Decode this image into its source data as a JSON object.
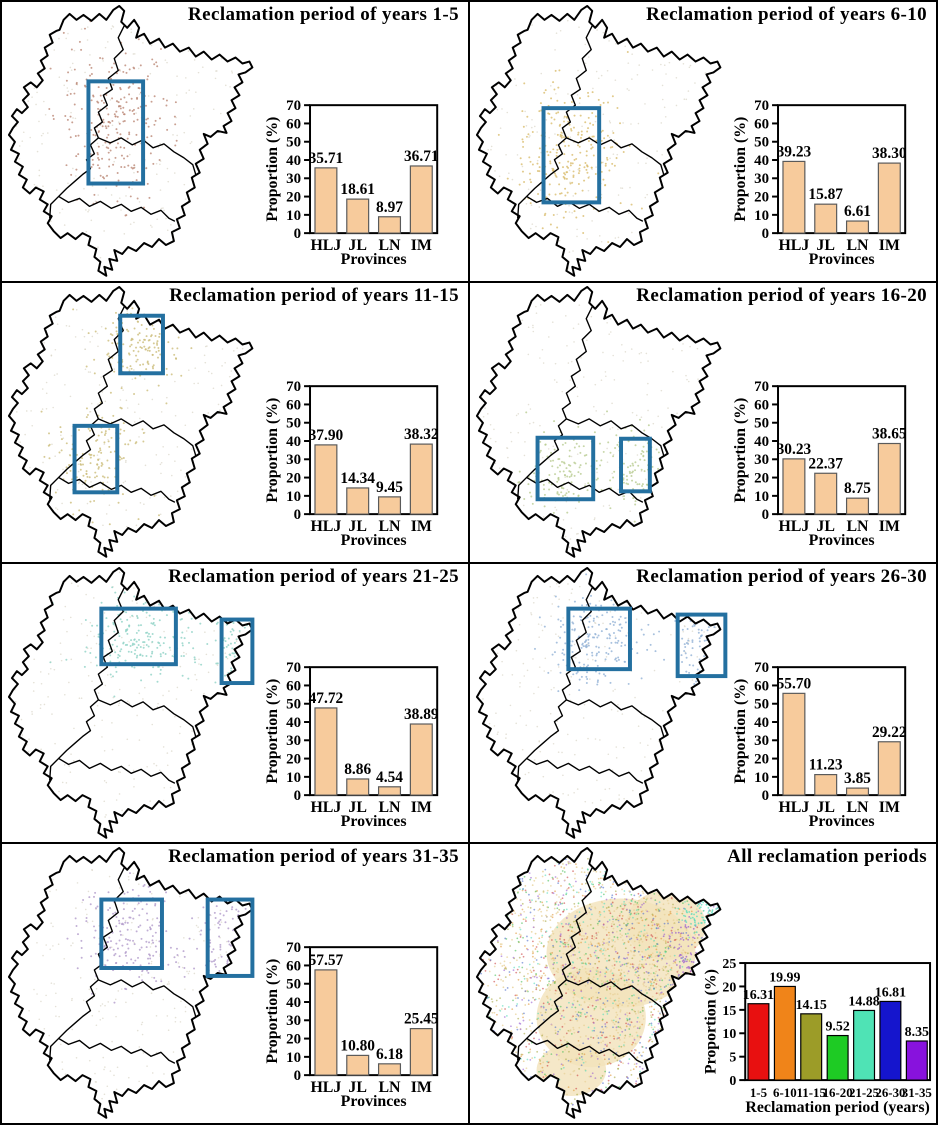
{
  "figure": {
    "description": "Eight-panel figure: maps of Northeast China provinces with highlighted regions and bar charts of cropland reclamation proportion",
    "colors": {
      "highlight_rect": "#2470a0",
      "small_bar_fill": "#f7cb9c",
      "small_bar_stroke": "#5a5a5a",
      "base_dot": "#d9d4c6",
      "tan_patch": "#f3e2ba",
      "map_outline": "#000000"
    }
  },
  "chart_data": [
    {
      "type": "bar",
      "title": "Reclamation period of years 1-5",
      "categories": [
        "HLJ",
        "JL",
        "LN",
        "IM"
      ],
      "values": [
        35.71,
        18.61,
        8.97,
        36.71
      ],
      "value_labels": [
        "35.71",
        "18.61",
        "8.97",
        "36.71"
      ],
      "xlabel": "Provinces",
      "ylabel": "Proportion (%)",
      "ylim": [
        0,
        70
      ],
      "yticks": [
        0,
        10,
        20,
        30,
        40,
        50,
        60,
        70
      ],
      "bar_color": "#f7cb9c",
      "grid": false,
      "legend": "none"
    },
    {
      "type": "bar",
      "title": "Reclamation period of years 6-10",
      "categories": [
        "HLJ",
        "JL",
        "LN",
        "IM"
      ],
      "values": [
        39.23,
        15.87,
        6.61,
        38.3
      ],
      "value_labels": [
        "39.23",
        "15.87",
        "6.61",
        "38.30"
      ],
      "xlabel": "Provinces",
      "ylabel": "Proportion (%)",
      "ylim": [
        0,
        70
      ],
      "yticks": [
        0,
        10,
        20,
        30,
        40,
        50,
        60,
        70
      ],
      "bar_color": "#f7cb9c",
      "grid": false,
      "legend": "none"
    },
    {
      "type": "bar",
      "title": "Reclamation period of years 11-15",
      "categories": [
        "HLJ",
        "JL",
        "LN",
        "IM"
      ],
      "values": [
        37.9,
        14.34,
        9.45,
        38.32
      ],
      "value_labels": [
        "37.90",
        "14.34",
        "9.45",
        "38.32"
      ],
      "xlabel": "Provinces",
      "ylabel": "Proportion (%)",
      "ylim": [
        0,
        70
      ],
      "yticks": [
        0,
        10,
        20,
        30,
        40,
        50,
        60,
        70
      ],
      "bar_color": "#f7cb9c",
      "grid": false,
      "legend": "none"
    },
    {
      "type": "bar",
      "title": "Reclamation period of years 16-20",
      "categories": [
        "HLJ",
        "JL",
        "LN",
        "IM"
      ],
      "values": [
        30.23,
        22.37,
        8.75,
        38.65
      ],
      "value_labels": [
        "30.23",
        "22.37",
        "8.75",
        "38.65"
      ],
      "xlabel": "Provinces",
      "ylabel": "Proportion (%)",
      "ylim": [
        0,
        70
      ],
      "yticks": [
        0,
        10,
        20,
        30,
        40,
        50,
        60,
        70
      ],
      "bar_color": "#f7cb9c",
      "grid": false,
      "legend": "none"
    },
    {
      "type": "bar",
      "title": "Reclamation period of years 21-25",
      "categories": [
        "HLJ",
        "JL",
        "LN",
        "IM"
      ],
      "values": [
        47.72,
        8.86,
        4.54,
        38.89
      ],
      "value_labels": [
        "47.72",
        "8.86",
        "4.54",
        "38.89"
      ],
      "xlabel": "Provinces",
      "ylabel": "Proportion (%)",
      "ylim": [
        0,
        70
      ],
      "yticks": [
        0,
        10,
        20,
        30,
        40,
        50,
        60,
        70
      ],
      "bar_color": "#f7cb9c",
      "grid": false,
      "legend": "none"
    },
    {
      "type": "bar",
      "title": "Reclamation period of years 26-30",
      "categories": [
        "HLJ",
        "JL",
        "LN",
        "IM"
      ],
      "values": [
        55.7,
        11.23,
        3.85,
        29.22
      ],
      "value_labels": [
        "55.70",
        "11.23",
        "3.85",
        "29.22"
      ],
      "xlabel": "Provinces",
      "ylabel": "Proportion (%)",
      "ylim": [
        0,
        70
      ],
      "yticks": [
        0,
        10,
        20,
        30,
        40,
        50,
        60,
        70
      ],
      "bar_color": "#f7cb9c",
      "grid": false,
      "legend": "none"
    },
    {
      "type": "bar",
      "title": "Reclamation period of years 31-35",
      "categories": [
        "HLJ",
        "JL",
        "LN",
        "IM"
      ],
      "values": [
        57.57,
        10.8,
        6.18,
        25.45
      ],
      "value_labels": [
        "57.57",
        "10.80",
        "6.18",
        "25.45"
      ],
      "xlabel": "Provinces",
      "ylabel": "Proportion (%)",
      "ylim": [
        0,
        70
      ],
      "yticks": [
        0,
        10,
        20,
        30,
        40,
        50,
        60,
        70
      ],
      "bar_color": "#f7cb9c",
      "grid": false,
      "legend": "none"
    },
    {
      "type": "bar",
      "title": "All reclamation periods",
      "categories": [
        "1-5",
        "6-10",
        "11-15",
        "16-20",
        "21-25",
        "26-30",
        "31-35"
      ],
      "values": [
        16.31,
        19.99,
        14.15,
        9.52,
        14.88,
        16.81,
        8.35
      ],
      "value_labels": [
        "16.31",
        "19.99",
        "14.15",
        "9.52",
        "14.88",
        "16.81",
        "8.35"
      ],
      "xlabel": "Reclamation period (years)",
      "ylabel": "Proportion (%)",
      "ylim": [
        0,
        25
      ],
      "yticks": [
        0,
        5,
        10,
        15,
        20,
        25
      ],
      "bar_colors": [
        "#e81010",
        "#f08419",
        "#9c9c28",
        "#1ecb24",
        "#4fe3b5",
        "#1515cd",
        "#8812dd"
      ],
      "grid": false,
      "legend": "none"
    }
  ],
  "panels": [
    {
      "id": "years-1-5",
      "map": {
        "dot_colors": [
          "#bb8877"
        ],
        "highlight_rects": [
          [
            85,
            80,
            55,
            103
          ]
        ]
      }
    },
    {
      "id": "years-6-10",
      "map": {
        "dot_colors": [
          "#d9bd6e"
        ],
        "highlight_rects": [
          [
            72,
            107,
            56,
            95
          ]
        ]
      }
    },
    {
      "id": "years-11-15",
      "map": {
        "dot_colors": [
          "#ccbd7a"
        ],
        "highlight_rects": [
          [
            117,
            33,
            43,
            58
          ],
          [
            71,
            144,
            43,
            67
          ]
        ]
      }
    },
    {
      "id": "years-16-20",
      "map": {
        "dot_colors": [
          "#b9cc92"
        ],
        "highlight_rects": [
          [
            66,
            156,
            56,
            62
          ],
          [
            150,
            157,
            29,
            53
          ]
        ]
      }
    },
    {
      "id": "years-21-25",
      "map": {
        "dot_colors": [
          "#8ed2c6"
        ],
        "highlight_rects": [
          [
            98,
            45,
            75,
            56
          ],
          [
            219,
            56,
            31,
            64
          ]
        ]
      }
    },
    {
      "id": "years-26-30",
      "map": {
        "dot_colors": [
          "#92b2d6"
        ],
        "highlight_rects": [
          [
            97,
            45,
            62,
            61
          ],
          [
            207,
            51,
            48,
            62
          ]
        ]
      }
    },
    {
      "id": "years-31-35",
      "map": {
        "dot_colors": [
          "#b19bca"
        ],
        "highlight_rects": [
          [
            98,
            56,
            61,
            69
          ],
          [
            205,
            56,
            45,
            77
          ]
        ]
      }
    },
    {
      "id": "all-periods",
      "map": {
        "dot_colors": [
          "#e8d29a",
          "#cc4444",
          "#e0983a",
          "#a8a845",
          "#4cbf5a",
          "#56dcbb",
          "#5070cc",
          "#9a5fd0"
        ],
        "highlight_rects": []
      }
    }
  ]
}
